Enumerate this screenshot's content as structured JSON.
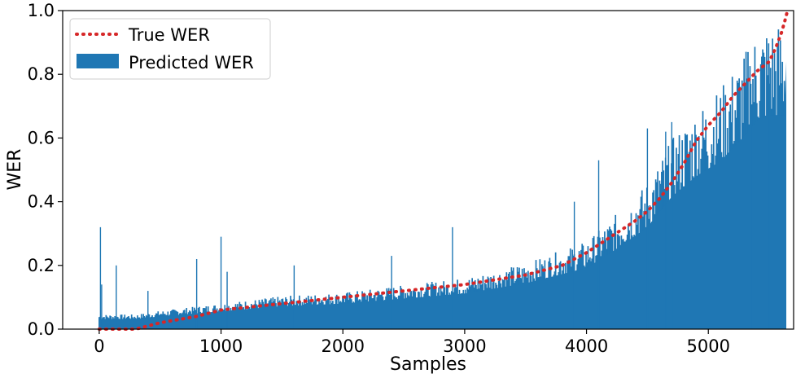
{
  "chart_data": {
    "type": "bar",
    "title": "",
    "xlabel": "Samples",
    "ylabel": "WER",
    "xlim": [
      -300,
      5700
    ],
    "ylim": [
      0.0,
      1.0
    ],
    "x_ticks": [
      0,
      1000,
      2000,
      3000,
      4000,
      5000
    ],
    "x_tick_labels": [
      "0",
      "1000",
      "2000",
      "3000",
      "4000",
      "5000"
    ],
    "y_ticks": [
      0.0,
      0.2,
      0.4,
      0.6,
      0.8,
      1.0
    ],
    "y_tick_labels": [
      "0.0",
      "0.2",
      "0.4",
      "0.6",
      "0.8",
      "1.0"
    ],
    "grid": false,
    "legend_position": "top-left",
    "series": [
      {
        "name": "True WER",
        "kind": "line",
        "style": "dotted",
        "color": "#d62728",
        "x": [
          0,
          300,
          400,
          500,
          800,
          1000,
          1500,
          2000,
          2500,
          3000,
          3500,
          3800,
          4000,
          4200,
          4400,
          4500,
          4600,
          4700,
          4800,
          4900,
          5000,
          5100,
          5200,
          5300,
          5400,
          5500,
          5550,
          5600,
          5630,
          5650
        ],
        "y": [
          0.0,
          0.0,
          0.01,
          0.02,
          0.04,
          0.06,
          0.08,
          0.1,
          0.12,
          0.14,
          0.17,
          0.2,
          0.24,
          0.29,
          0.34,
          0.37,
          0.41,
          0.46,
          0.52,
          0.59,
          0.64,
          0.68,
          0.73,
          0.77,
          0.81,
          0.84,
          0.88,
          0.93,
          0.97,
          1.0
        ]
      },
      {
        "name": "Predicted WER",
        "kind": "bars",
        "color": "#1f77b4",
        "x_range": [
          0,
          5640
        ],
        "envelope_x": [
          0,
          300,
          500,
          1000,
          1500,
          2000,
          2500,
          3000,
          3500,
          4000,
          4200,
          4500,
          4700,
          4900,
          5100,
          5300,
          5400,
          5500,
          5640
        ],
        "envelope_y": [
          0.04,
          0.04,
          0.05,
          0.07,
          0.09,
          0.1,
          0.12,
          0.14,
          0.18,
          0.24,
          0.3,
          0.4,
          0.52,
          0.6,
          0.66,
          0.76,
          0.82,
          0.84,
          0.84
        ],
        "spike_x": [
          10,
          20,
          140,
          400,
          800,
          1000,
          1050,
          1600,
          2400,
          2900,
          3900,
          4100,
          4500,
          4650,
          4700,
          5350,
          5500
        ],
        "spike_y": [
          0.32,
          0.14,
          0.2,
          0.12,
          0.22,
          0.29,
          0.18,
          0.2,
          0.23,
          0.32,
          0.4,
          0.53,
          0.63,
          0.62,
          0.65,
          0.77,
          0.84
        ]
      }
    ]
  }
}
